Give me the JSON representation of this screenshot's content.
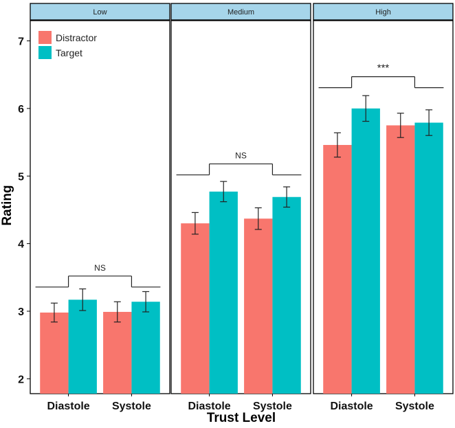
{
  "chart_data": {
    "type": "bar",
    "xlabel": "Trust Level",
    "ylabel": "Rating",
    "ylim": [
      1.78,
      7.3
    ],
    "yticks": [
      2,
      3,
      4,
      5,
      6,
      7
    ],
    "categories": [
      "Diastole",
      "Systole"
    ],
    "legend": {
      "position": "top-left",
      "entries": [
        {
          "name": "Distractor",
          "color": "#F8766D"
        },
        {
          "name": "Target",
          "color": "#00BFC4"
        }
      ]
    },
    "panels": [
      {
        "label": "Low",
        "significance": "NS",
        "sig_level": 3.52,
        "series": [
          {
            "name": "Distractor",
            "values": [
              2.98,
              2.99
            ],
            "errors": [
              0.14,
              0.15
            ]
          },
          {
            "name": "Target",
            "values": [
              3.17,
              3.14
            ],
            "errors": [
              0.16,
              0.15
            ]
          }
        ]
      },
      {
        "label": "Medium",
        "significance": "NS",
        "sig_level": 5.18,
        "series": [
          {
            "name": "Distractor",
            "values": [
              4.3,
              4.37
            ],
            "errors": [
              0.16,
              0.16
            ]
          },
          {
            "name": "Target",
            "values": [
              4.77,
              4.69
            ],
            "errors": [
              0.15,
              0.15
            ]
          }
        ]
      },
      {
        "label": "High",
        "significance": "***",
        "sig_level": 6.47,
        "series": [
          {
            "name": "Distractor",
            "values": [
              5.46,
              5.75
            ],
            "errors": [
              0.18,
              0.18
            ]
          },
          {
            "name": "Target",
            "values": [
              6.0,
              5.79
            ],
            "errors": [
              0.19,
              0.19
            ]
          }
        ]
      }
    ]
  }
}
